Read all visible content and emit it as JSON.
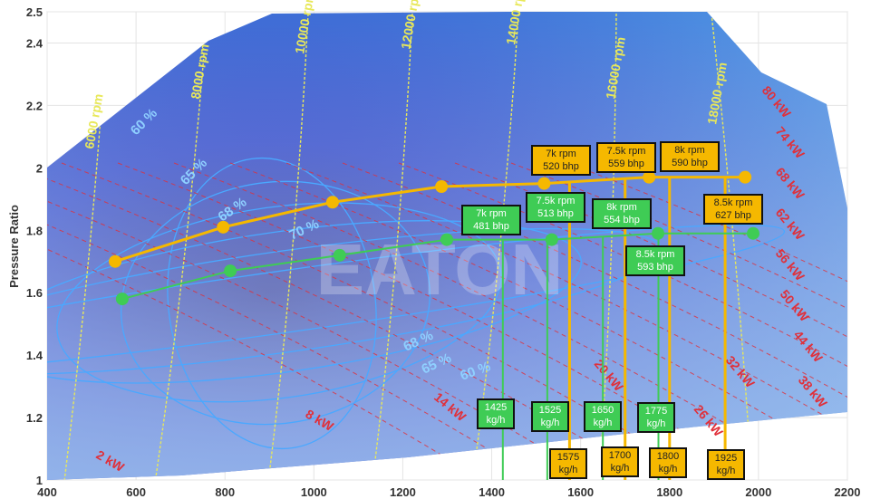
{
  "chart_data": {
    "type": "line",
    "title": "",
    "xlabel": "",
    "ylabel": "Pressure Ratio",
    "xlim": [
      400,
      2200
    ],
    "ylim": [
      1,
      2.5
    ],
    "x_ticks": [
      "400",
      "600",
      "800",
      "1000",
      "1200",
      "1400",
      "1600",
      "1800",
      "2000",
      "2200"
    ],
    "y_ticks": [
      "1",
      "1.2",
      "1.4",
      "1.6",
      "1.8",
      "2",
      "2.2",
      "2.4",
      "2.5"
    ],
    "watermark": "EATON",
    "colors": {
      "orange": "#f5b800",
      "green": "#3fcc55",
      "map": "#2f4fd0",
      "speed": "#e8e85a",
      "power": "#e0303a",
      "efficiency": "#4aa8ff"
    },
    "series": [
      {
        "color": "orange",
        "x": [
          553,
          796,
          1042,
          1287,
          1518,
          1754,
          1970
        ],
        "y": [
          1.7,
          1.81,
          1.89,
          1.94,
          1.95,
          1.97,
          1.97
        ]
      },
      {
        "color": "green",
        "x": [
          569,
          812,
          1058,
          1299,
          1535,
          1774,
          1988
        ],
        "y": [
          1.58,
          1.67,
          1.72,
          1.77,
          1.77,
          1.79,
          1.79
        ]
      }
    ],
    "point_labels": [
      {
        "color": "orange",
        "rpm": "7k rpm",
        "power": "520 bhp"
      },
      {
        "color": "orange",
        "rpm": "7.5k rpm",
        "power": "559 bhp"
      },
      {
        "color": "orange",
        "rpm": "8k rpm",
        "power": "590 bhp"
      },
      {
        "color": "orange",
        "rpm": "8.5k rpm",
        "power": "627 bhp"
      },
      {
        "color": "green",
        "rpm": "7k rpm",
        "power": "481 bhp"
      },
      {
        "color": "green",
        "rpm": "7.5k rpm",
        "power": "513 bhp"
      },
      {
        "color": "green",
        "rpm": "8k rpm",
        "power": "554 bhp"
      },
      {
        "color": "green",
        "rpm": "8.5k rpm",
        "power": "593 bhp"
      }
    ],
    "flow_lines": [
      {
        "color": "green",
        "value": 1425,
        "label": "1425",
        "unit": "kg/h"
      },
      {
        "color": "green",
        "value": 1525,
        "label": "1525",
        "unit": "kg/h"
      },
      {
        "color": "green",
        "value": 1650,
        "label": "1650",
        "unit": "kg/h"
      },
      {
        "color": "green",
        "value": 1775,
        "label": "1775",
        "unit": "kg/h"
      },
      {
        "color": "orange",
        "value": 1575,
        "label": "1575",
        "unit": "kg/h"
      },
      {
        "color": "orange",
        "value": 1700,
        "label": "1700",
        "unit": "kg/h"
      },
      {
        "color": "orange",
        "value": 1800,
        "label": "1800",
        "unit": "kg/h"
      },
      {
        "color": "orange",
        "value": 1925,
        "label": "1925",
        "unit": "kg/h"
      }
    ],
    "speed_lines": [
      "6000 rpm",
      "8000 rpm",
      "10000 rpm",
      "12000 rpm",
      "14000 rpm",
      "16000 rpm",
      "18000 rpm"
    ],
    "efficiency_labels": [
      "60 %",
      "65 %",
      "68 %",
      "70 %",
      "68 %",
      "65 %",
      "60 %"
    ],
    "power_labels": [
      "2 kW",
      "8 kW",
      "14 kW",
      "20 kW",
      "26 kW",
      "32 kW",
      "38 kW",
      "44 kW",
      "50 kW",
      "56 kW",
      "62 kW",
      "68 kW",
      "74 kW",
      "80 kW"
    ]
  }
}
